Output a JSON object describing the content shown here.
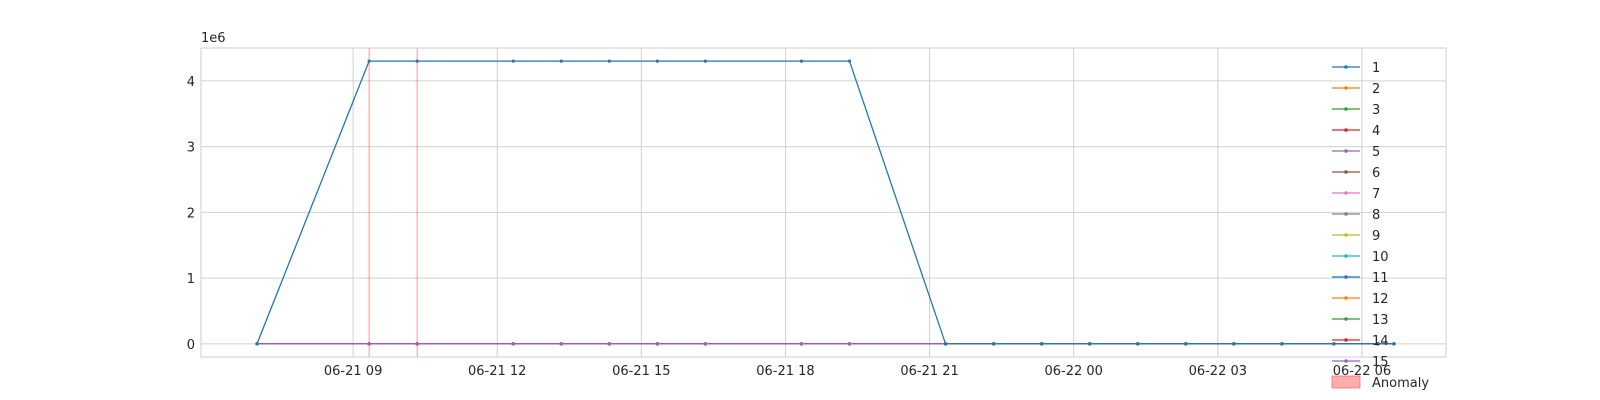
{
  "chart_data": {
    "type": "line",
    "title": "",
    "xlabel": "",
    "ylabel": "",
    "y_offset_label": "1e6",
    "y_scale": 1000000,
    "xlim": [
      "2024-06-21T05:50:00",
      "2024-06-22T07:45:00"
    ],
    "ylim": [
      -200000,
      4500000
    ],
    "grid": true,
    "legend_placement": "right",
    "x_ticks": [
      {
        "t": "2024-06-21T09:00:00",
        "label": "06-21 09"
      },
      {
        "t": "2024-06-21T12:00:00",
        "label": "06-21 12"
      },
      {
        "t": "2024-06-21T15:00:00",
        "label": "06-21 15"
      },
      {
        "t": "2024-06-21T18:00:00",
        "label": "06-21 18"
      },
      {
        "t": "2024-06-21T21:00:00",
        "label": "06-21 21"
      },
      {
        "t": "2024-06-22T00:00:00",
        "label": "06-22 00"
      },
      {
        "t": "2024-06-22T03:00:00",
        "label": "06-22 03"
      },
      {
        "t": "2024-06-22T06:00:00",
        "label": "06-22 06"
      }
    ],
    "y_ticks": [
      {
        "v": 0,
        "label": "0"
      },
      {
        "v": 1000000,
        "label": "1"
      },
      {
        "v": 2000000,
        "label": "2"
      },
      {
        "v": 3000000,
        "label": "3"
      },
      {
        "v": 4000000,
        "label": "4"
      }
    ],
    "x": [
      "2024-06-21T07:00:00",
      "2024-06-21T09:20:00",
      "2024-06-21T10:20:00",
      "2024-06-21T12:20:00",
      "2024-06-21T13:20:00",
      "2024-06-21T14:20:00",
      "2024-06-21T15:20:00",
      "2024-06-21T16:20:00",
      "2024-06-21T18:20:00",
      "2024-06-21T19:20:00",
      "2024-06-21T21:20:00",
      "2024-06-21T22:20:00",
      "2024-06-21T23:20:00",
      "2024-06-22T00:20:00",
      "2024-06-22T01:20:00",
      "2024-06-22T02:20:00",
      "2024-06-22T03:20:00",
      "2024-06-22T04:20:00",
      "2024-06-22T05:25:00",
      "2024-06-22T06:20:00",
      "2024-06-22T06:40:00"
    ],
    "series": [
      {
        "name": "1",
        "color": "#1f77b4",
        "values": [
          0,
          4300000,
          4300000,
          4300000,
          4300000,
          4300000,
          4300000,
          4300000,
          4300000,
          4300000,
          0,
          0,
          0,
          0,
          0,
          0,
          0,
          0,
          0,
          0,
          0
        ]
      },
      {
        "name": "2",
        "color": "#ff7f0e",
        "values": [
          0,
          0,
          0,
          0,
          0,
          0,
          0,
          0,
          0,
          0,
          0,
          0,
          0,
          0,
          0,
          0,
          0,
          0,
          0,
          0,
          0
        ]
      },
      {
        "name": "3",
        "color": "#2ca02c",
        "values": [
          0,
          0,
          0,
          0,
          0,
          0,
          0,
          0,
          0,
          0,
          0,
          0,
          0,
          0,
          0,
          0,
          0,
          0,
          0,
          0,
          0
        ]
      },
      {
        "name": "4",
        "color": "#d62728",
        "values": [
          0,
          0,
          0,
          0,
          0,
          0,
          0,
          0,
          0,
          0,
          0,
          0,
          0,
          0,
          0,
          0,
          0,
          0,
          0,
          0,
          0
        ]
      },
      {
        "name": "5",
        "color": "#9467bd",
        "values": [
          0,
          0,
          0,
          0,
          0,
          0,
          0,
          0,
          0,
          0,
          0,
          0,
          0,
          0,
          0,
          0,
          0,
          0,
          0,
          0,
          0
        ]
      },
      {
        "name": "6",
        "color": "#8c564b",
        "values": [
          0,
          0,
          0,
          0,
          0,
          0,
          0,
          0,
          0,
          0,
          0,
          0,
          0,
          0,
          0,
          0,
          0,
          0,
          0,
          0,
          0
        ]
      },
      {
        "name": "7",
        "color": "#e377c2",
        "values": [
          0,
          0,
          0,
          0,
          0,
          0,
          0,
          0,
          0,
          0,
          0,
          0,
          0,
          0,
          0,
          0,
          0,
          0,
          0,
          0,
          0
        ]
      },
      {
        "name": "8",
        "color": "#7f7f7f",
        "values": [
          0,
          0,
          0,
          0,
          0,
          0,
          0,
          0,
          0,
          0,
          0,
          0,
          0,
          0,
          0,
          0,
          0,
          0,
          0,
          0,
          0
        ]
      },
      {
        "name": "9",
        "color": "#bcbd22",
        "values": [
          0,
          0,
          0,
          0,
          0,
          0,
          0,
          0,
          0,
          0,
          0,
          0,
          0,
          0,
          0,
          0,
          0,
          0,
          0,
          0,
          0
        ]
      },
      {
        "name": "10",
        "color": "#17becf",
        "values": [
          0,
          0,
          0,
          0,
          0,
          0,
          0,
          0,
          0,
          0,
          0,
          0,
          0,
          0,
          0,
          0,
          0,
          0,
          0,
          0,
          0
        ]
      },
      {
        "name": "11",
        "color": "#1f77b4",
        "values": [
          0,
          0,
          0,
          0,
          0,
          0,
          0,
          0,
          0,
          0,
          0,
          0,
          0,
          0,
          0,
          0,
          0,
          0,
          0,
          0,
          0
        ]
      },
      {
        "name": "12",
        "color": "#ff7f0e",
        "values": [
          0,
          0,
          0,
          0,
          0,
          0,
          0,
          0,
          0,
          0,
          0,
          0,
          0,
          0,
          0,
          0,
          0,
          0,
          0,
          0,
          0
        ]
      },
      {
        "name": "13",
        "color": "#2ca02c",
        "values": [
          0,
          0,
          0,
          0,
          0,
          0,
          0,
          0,
          0,
          0,
          0,
          0,
          0,
          0,
          0,
          0,
          0,
          0,
          0,
          0,
          0
        ]
      },
      {
        "name": "14",
        "color": "#d62728",
        "values": [
          0,
          0,
          0,
          0,
          0,
          0,
          0,
          0,
          0,
          0,
          0,
          0,
          0,
          0,
          0,
          0,
          0,
          0,
          0,
          0,
          0
        ]
      },
      {
        "name": "15",
        "color": "#9467bd",
        "values": [
          0,
          0,
          0,
          0,
          0,
          0,
          0,
          0,
          0,
          0,
          0,
          0,
          0,
          0,
          0,
          0,
          0,
          0,
          0,
          0,
          0
        ]
      }
    ],
    "anomalies": {
      "label": "Anomaly",
      "color": "#ff6b6b",
      "times": [
        "2024-06-21T09:20:00",
        "2024-06-21T10:20:00"
      ]
    }
  }
}
